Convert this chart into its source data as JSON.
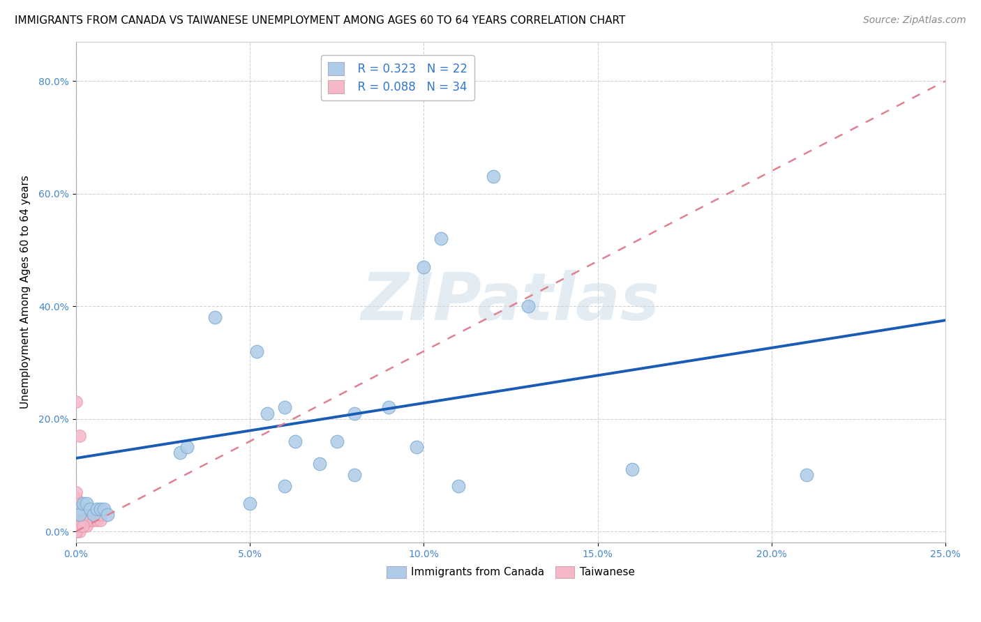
{
  "title": "IMMIGRANTS FROM CANADA VS TAIWANESE UNEMPLOYMENT AMONG AGES 60 TO 64 YEARS CORRELATION CHART",
  "source": "Source: ZipAtlas.com",
  "ylabel": "Unemployment Among Ages 60 to 64 years",
  "xlim": [
    0.0,
    0.25
  ],
  "ylim": [
    -0.02,
    0.87
  ],
  "xticks": [
    0.0,
    0.05,
    0.1,
    0.15,
    0.2,
    0.25
  ],
  "yticks": [
    0.0,
    0.2,
    0.4,
    0.6,
    0.8
  ],
  "background_color": "#ffffff",
  "grid_color": "#cccccc",
  "watermark": "ZIPatlas",
  "blue_points": [
    [
      0.001,
      0.04
    ],
    [
      0.001,
      0.03
    ],
    [
      0.002,
      0.05
    ],
    [
      0.003,
      0.05
    ],
    [
      0.004,
      0.04
    ],
    [
      0.005,
      0.03
    ],
    [
      0.006,
      0.04
    ],
    [
      0.007,
      0.04
    ],
    [
      0.008,
      0.04
    ],
    [
      0.009,
      0.03
    ],
    [
      0.03,
      0.14
    ],
    [
      0.032,
      0.15
    ],
    [
      0.04,
      0.38
    ],
    [
      0.052,
      0.32
    ],
    [
      0.055,
      0.21
    ],
    [
      0.06,
      0.22
    ],
    [
      0.063,
      0.16
    ],
    [
      0.075,
      0.16
    ],
    [
      0.08,
      0.21
    ],
    [
      0.09,
      0.22
    ],
    [
      0.098,
      0.15
    ],
    [
      0.1,
      0.47
    ],
    [
      0.105,
      0.52
    ],
    [
      0.11,
      0.08
    ],
    [
      0.12,
      0.63
    ],
    [
      0.13,
      0.4
    ],
    [
      0.16,
      0.11
    ],
    [
      0.21,
      0.1
    ],
    [
      0.06,
      0.08
    ],
    [
      0.07,
      0.12
    ],
    [
      0.08,
      0.1
    ],
    [
      0.05,
      0.05
    ]
  ],
  "pink_points": [
    [
      0.0,
      0.23
    ],
    [
      0.001,
      0.17
    ],
    [
      0.0,
      0.02
    ],
    [
      0.0,
      0.01
    ],
    [
      0.0,
      0.04
    ],
    [
      0.0,
      0.03
    ],
    [
      0.0,
      0.05
    ],
    [
      0.0,
      0.06
    ],
    [
      0.0,
      0.07
    ],
    [
      0.0,
      0.01
    ],
    [
      0.001,
      0.03
    ],
    [
      0.001,
      0.04
    ],
    [
      0.001,
      0.02
    ],
    [
      0.001,
      0.01
    ],
    [
      0.002,
      0.03
    ],
    [
      0.002,
      0.04
    ],
    [
      0.002,
      0.02
    ],
    [
      0.003,
      0.03
    ],
    [
      0.003,
      0.01
    ],
    [
      0.004,
      0.02
    ],
    [
      0.005,
      0.03
    ],
    [
      0.005,
      0.02
    ],
    [
      0.006,
      0.03
    ],
    [
      0.006,
      0.02
    ],
    [
      0.007,
      0.02
    ],
    [
      0.007,
      0.03
    ],
    [
      0.0,
      0.0
    ],
    [
      0.0,
      0.0
    ],
    [
      0.0,
      0.01
    ],
    [
      0.0,
      0.01
    ],
    [
      0.001,
      0.0
    ],
    [
      0.0,
      0.0
    ],
    [
      0.001,
      0.01
    ],
    [
      0.002,
      0.01
    ]
  ],
  "blue_line": {
    "x0": 0.0,
    "y0": 0.13,
    "x1": 0.25,
    "y1": 0.375
  },
  "pink_line": {
    "x0": 0.0,
    "y0": 0.0,
    "x1": 0.25,
    "y1": 0.8
  },
  "blue_line_color": "#1a5cb5",
  "pink_line_color": "#e08090",
  "blue_scatter_color": "#aecce8",
  "pink_scatter_color": "#f5b8c8",
  "blue_scatter_edge": "#7aaad0",
  "pink_scatter_edge": "#e898a8",
  "title_fontsize": 11,
  "axis_label_fontsize": 11,
  "tick_fontsize": 10,
  "legend_fontsize": 12,
  "source_fontsize": 10
}
